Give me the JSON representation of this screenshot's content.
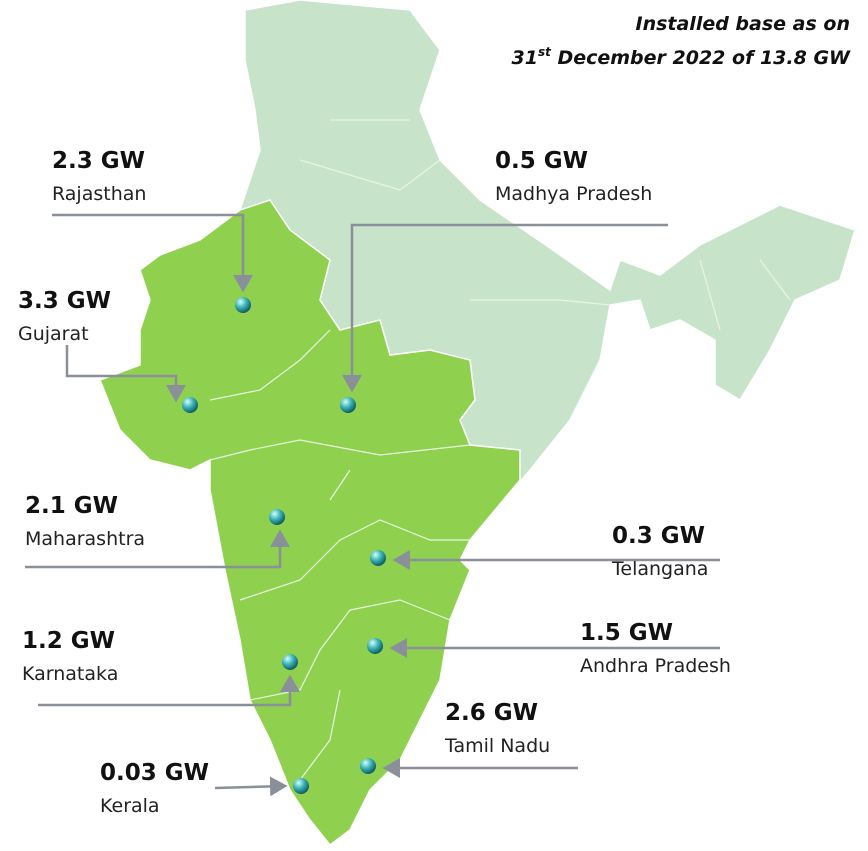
{
  "title": {
    "line1": "Installed base as on",
    "line2": [
      "31",
      "st",
      " December 2022 of 13.8 GW"
    ]
  },
  "labels": [
    {
      "capacity": "2.3 GW",
      "state": "Rajasthan"
    },
    {
      "capacity": "3.3 GW",
      "state": "Gujarat"
    },
    {
      "capacity": "0.5 GW",
      "state": "Madhya Pradesh"
    },
    {
      "capacity": "2.1 GW",
      "state": "Maharashtra"
    },
    {
      "capacity": "0.3 GW",
      "state": "Telangana"
    },
    {
      "capacity": "1.2 GW",
      "state": "Karnataka"
    },
    {
      "capacity": "1.5 GW",
      "state": "Andhra Pradesh"
    },
    {
      "capacity": "2.6 GW",
      "state": "Tamil Nadu"
    },
    {
      "capacity": "0.03 GW",
      "state": "Kerala"
    }
  ]
}
